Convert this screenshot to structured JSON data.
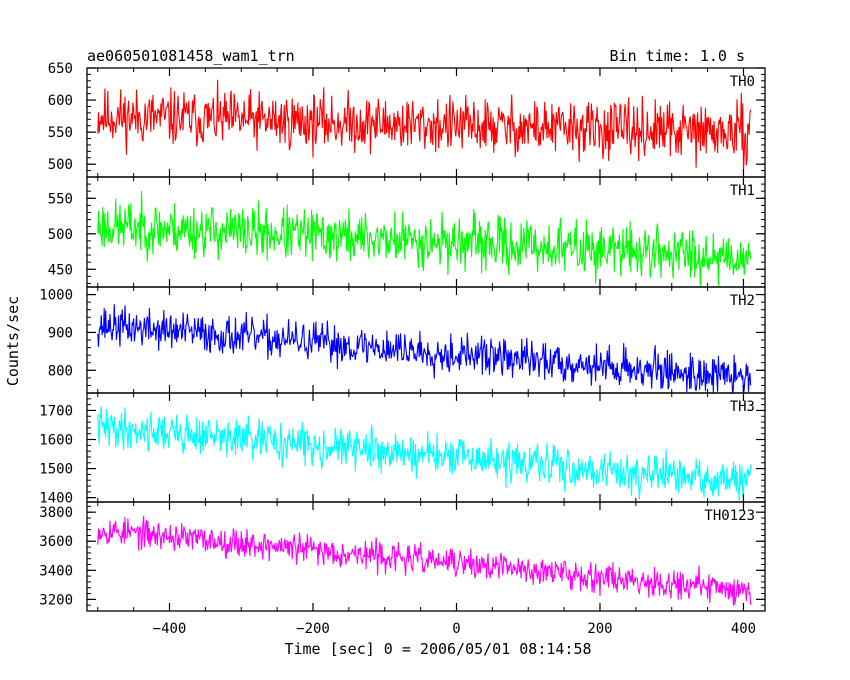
{
  "header": {
    "title": "ae060501081458_wam1_trn",
    "bin_time": "Bin time: 1.0 s"
  },
  "chart_data": {
    "type": "line",
    "xlabel": "Time [sec] 0 = 2006/05/01 08:14:58",
    "ylabel": "Counts/sec",
    "xlim": [
      -515,
      430
    ],
    "x_start": -500,
    "x_end": 410,
    "x_step": 1.0,
    "x_ticks": [
      -400,
      -200,
      0,
      200,
      400
    ],
    "x_tick_labels": [
      "−400",
      "−200",
      "0",
      "200",
      "400"
    ],
    "panels": [
      {
        "label": "TH0",
        "color": "#ff0000",
        "ylim": [
          480,
          650
        ],
        "y_ticks": [
          500,
          550,
          600,
          650
        ],
        "y_tick_labels": [
          "500",
          "550",
          "600",
          "650"
        ],
        "trend": [
          575,
          548
        ],
        "noise": 27,
        "seed": 11
      },
      {
        "label": "TH1",
        "color": "#00ff00",
        "ylim": [
          425,
          580
        ],
        "y_ticks": [
          450,
          500,
          550
        ],
        "y_tick_labels": [
          "450",
          "500",
          "550"
        ],
        "trend": [
          512,
          468
        ],
        "noise": 23,
        "seed": 23
      },
      {
        "label": "TH2",
        "color": "#0000ff",
        "ylim": [
          740,
          1020
        ],
        "y_ticks": [
          800,
          900,
          1000
        ],
        "y_tick_labels": [
          "800",
          "900",
          "1000"
        ],
        "trend": [
          920,
          780
        ],
        "noise": 32,
        "seed": 37
      },
      {
        "label": "TH3",
        "color": "#00ffff",
        "ylim": [
          1385,
          1760
        ],
        "y_ticks": [
          1400,
          1500,
          1600,
          1700
        ],
        "y_tick_labels": [
          "1400",
          "1500",
          "1600",
          "1700"
        ],
        "trend": [
          1645,
          1450
        ],
        "noise": 42,
        "seed": 41
      },
      {
        "label": "TH0123",
        "color": "#ff00ff",
        "ylim": [
          3120,
          3870
        ],
        "y_ticks": [
          3200,
          3400,
          3600,
          3800
        ],
        "y_tick_labels": [
          "3200",
          "3400",
          "3600",
          "3800"
        ],
        "trend": [
          3680,
          3260
        ],
        "noise": 62,
        "seed": 53
      }
    ]
  }
}
